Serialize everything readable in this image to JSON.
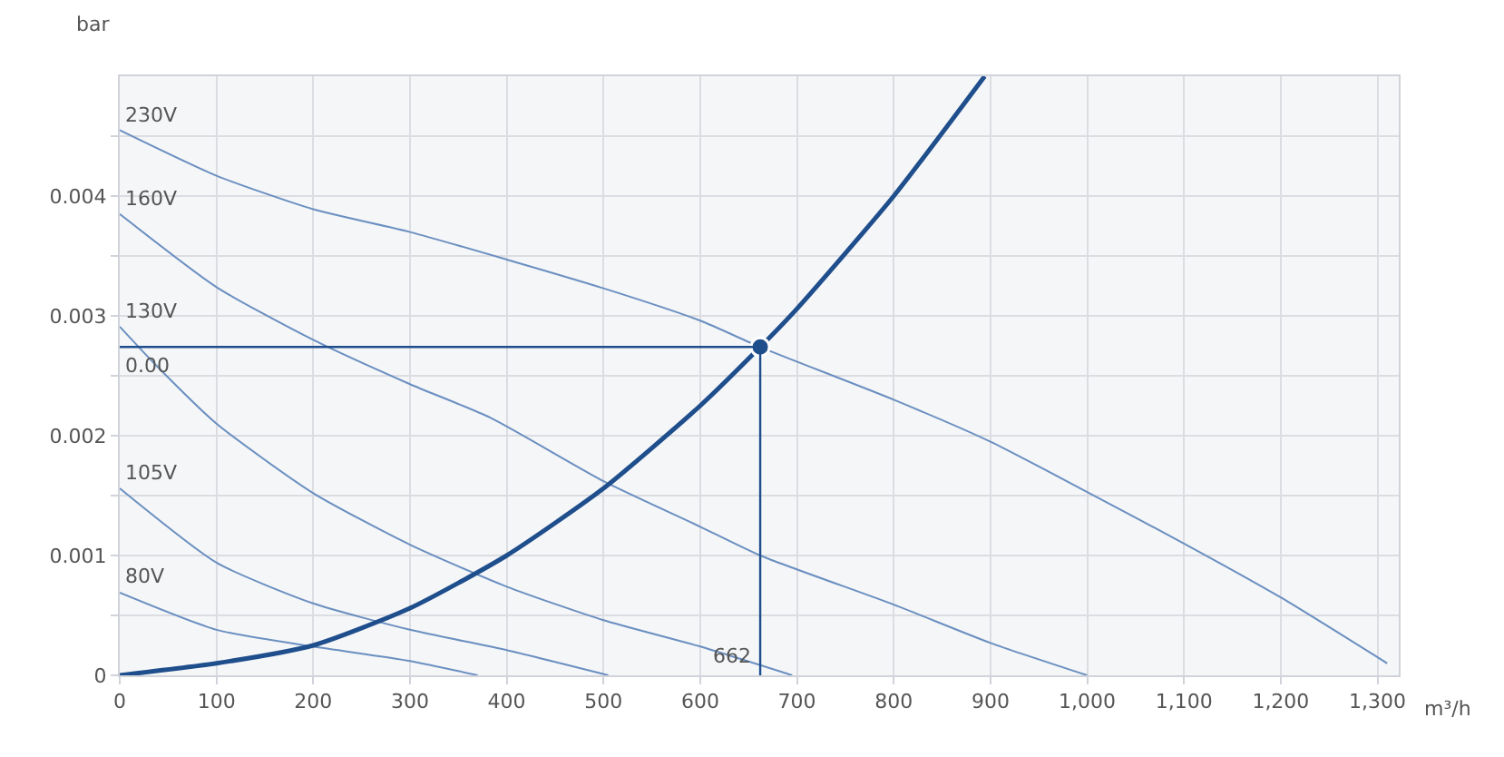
{
  "chart_data": {
    "type": "line",
    "xlabel": "m³/h",
    "ylabel": "bar",
    "xlim": [
      0,
      1322
    ],
    "ylim": [
      0,
      0.005
    ],
    "xticks": [
      0,
      100,
      200,
      300,
      400,
      500,
      600,
      700,
      800,
      900,
      {
        "value": 1000,
        "label": "1,000"
      },
      {
        "value": 1100,
        "label": "1,100"
      },
      {
        "value": 1200,
        "label": "1,200"
      },
      {
        "value": 1300,
        "label": "1,300"
      }
    ],
    "yticks": [
      0,
      {
        "value": 0.0005,
        "label": null
      },
      0.001,
      {
        "value": 0.0015,
        "label": null
      },
      0.002,
      {
        "value": 0.0025,
        "label": null
      },
      0.003,
      {
        "value": 0.0035,
        "label": null
      },
      0.004,
      {
        "value": 0.0045,
        "label": null
      }
    ],
    "grid": true,
    "legend": false,
    "marker": "none",
    "line_style": "solid",
    "series": [
      {
        "name": "230V",
        "color": "#6a8fc0",
        "x": [
          0,
          100,
          200,
          300,
          400,
          500,
          600,
          662,
          800,
          900,
          1000,
          1100,
          1200,
          1310
        ],
        "values": [
          0.00455,
          0.00417,
          0.00389,
          0.0037,
          0.00347,
          0.00323,
          0.00296,
          0.00274,
          0.0023,
          0.00195,
          0.00153,
          0.0011,
          0.00065,
          0.0001
        ]
      },
      {
        "name": "160V",
        "color": "#6a8fc0",
        "x": [
          0,
          100,
          200,
          300,
          383,
          500,
          600,
          662,
          800,
          900,
          1000
        ],
        "values": [
          0.00385,
          0.00324,
          0.0028,
          0.00243,
          0.00215,
          0.00162,
          0.00124,
          0.001,
          0.00059,
          0.00027,
          0
        ]
      },
      {
        "name": "130V",
        "color": "#6a8fc0",
        "x": [
          0,
          36,
          100,
          200,
          300,
          400,
          500,
          600,
          695
        ],
        "values": [
          0.00291,
          0.0026,
          0.0021,
          0.00152,
          0.00109,
          0.00074,
          0.00046,
          0.00024,
          0
        ]
      },
      {
        "name": "105V",
        "color": "#6a8fc0",
        "x": [
          0,
          100,
          200,
          300,
          400,
          505
        ],
        "values": [
          0.00156,
          0.00094,
          0.0006,
          0.00038,
          0.00021,
          0
        ]
      },
      {
        "name": "80V",
        "color": "#6a8fc0",
        "x": [
          0,
          100,
          200,
          300,
          370
        ],
        "values": [
          0.00069,
          0.00038,
          0.00024,
          0.00012,
          0
        ]
      },
      {
        "color": "#1f4e8c",
        "x": [
          0,
          100,
          200,
          300,
          400,
          500,
          600,
          662,
          700,
          800,
          894
        ],
        "values": [
          0,
          0.0001,
          0.00025,
          0.00056,
          0.001,
          0.00156,
          0.00225,
          0.00274,
          0.00306,
          0.004,
          0.005
        ]
      },
      {
        "type": "scatter",
        "marker": "circle",
        "color": "#1f4e8c",
        "x": [
          662
        ],
        "values": [
          0.00274
        ]
      }
    ],
    "ref_lines": [
      {
        "axis": "y",
        "value": 0.00274,
        "label": "0.00",
        "color": "#1f4e8c"
      },
      {
        "axis": "x",
        "value": 662,
        "label": "662",
        "color": "#1f4e8c"
      }
    ]
  }
}
